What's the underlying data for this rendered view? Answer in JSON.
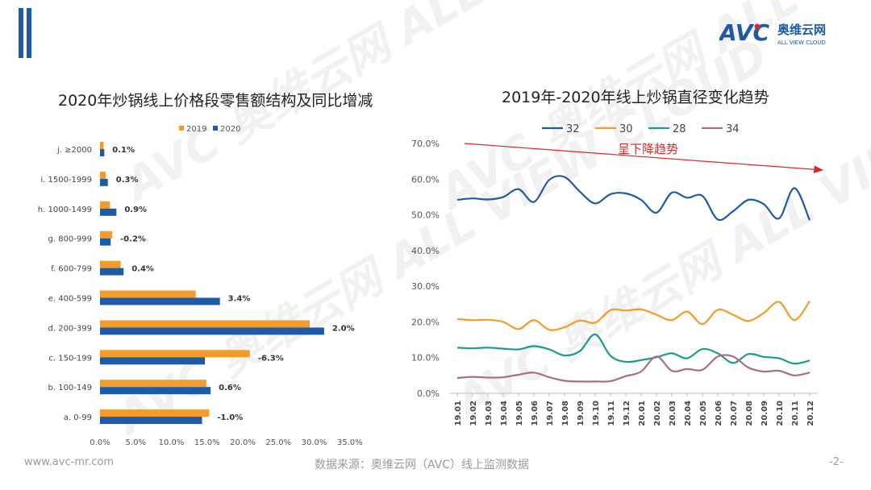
{
  "header": {
    "logo_text": "AVC",
    "logo_cn": "奥维云网",
    "logo_en": "ALL VIEW CLOUD",
    "colors": {
      "accent": "#1f5aa6",
      "logo_red": "#e02a2a"
    }
  },
  "watermark": "AVC 奥维云网 ALL VIEW CLOUD",
  "left_chart": {
    "title": "2020年炒锅线上价格段零售额结构及同比增减"
  },
  "right_chart": {
    "title": "2019年-2020年线上炒锅直径变化趋势",
    "annotation": "呈下降趋势"
  },
  "footer": {
    "website": "www.avc-mr.com",
    "source": "数据来源：奥维云网（AVC）线上监测数据",
    "page": "-2-"
  },
  "chart_data": [
    {
      "type": "bar",
      "orientation": "horizontal",
      "title": "2020年炒锅线上价格段零售额结构及同比增减",
      "categories": [
        "j. ≥2000",
        "i. 1500-1999",
        "h. 1000-1499",
        "g. 800-999",
        "f. 600-799",
        "e. 400-599",
        "d. 200-399",
        "c. 150-199",
        "b. 100-149",
        "a. 0-99"
      ],
      "series": [
        {
          "name": "2019",
          "color": "#f39c2b",
          "values": [
            0.5,
            0.8,
            1.4,
            1.7,
            2.9,
            13.4,
            29.4,
            21.0,
            14.9,
            15.3
          ]
        },
        {
          "name": "2020",
          "color": "#1f5aa6",
          "values": [
            0.6,
            1.1,
            2.3,
            1.5,
            3.3,
            16.8,
            31.4,
            14.7,
            15.5,
            14.3
          ]
        }
      ],
      "data_labels": [
        "0.1%",
        "0.3%",
        "0.9%",
        "-0.2%",
        "0.4%",
        "3.4%",
        "2.0%",
        "-6.3%",
        "0.6%",
        "-1.0%"
      ],
      "xlim": [
        0,
        35
      ],
      "xticks": [
        "0.0%",
        "5.0%",
        "10.0%",
        "15.0%",
        "20.0%",
        "25.0%",
        "30.0%",
        "35.0%"
      ],
      "legend": "top-right"
    },
    {
      "type": "line",
      "title": "2019年-2020年线上炒锅直径变化趋势",
      "x": [
        "19.01",
        "19.02",
        "19.03",
        "19.04",
        "19.05",
        "19.06",
        "19.07",
        "19.08",
        "19.09",
        "19.10",
        "19.11",
        "19.12",
        "20.01",
        "20.02",
        "20.03",
        "20.04",
        "20.05",
        "20.06",
        "20.07",
        "20.08",
        "20.09",
        "20.10",
        "20.11",
        "20.12"
      ],
      "series": [
        {
          "name": "32",
          "color": "#1f5aa6",
          "values": [
            54.2,
            54.6,
            54.3,
            55.0,
            57.2,
            53.6,
            59.8,
            60.6,
            56.5,
            53.2,
            55.8,
            56.0,
            54.2,
            50.6,
            56.2,
            54.8,
            55.3,
            48.7,
            51.0,
            54.2,
            53.0,
            49.0,
            57.5,
            48.5
          ]
        },
        {
          "name": "30",
          "color": "#f39c2b",
          "values": [
            20.8,
            20.5,
            20.6,
            20.0,
            18.0,
            20.5,
            17.8,
            18.5,
            20.4,
            19.8,
            23.3,
            23.2,
            23.5,
            22.0,
            20.5,
            22.9,
            19.4,
            23.4,
            22.0,
            20.3,
            22.5,
            25.6,
            20.5,
            25.8
          ]
        },
        {
          "name": "28",
          "color": "#1a9c8c",
          "values": [
            12.8,
            12.6,
            12.8,
            12.5,
            12.3,
            13.2,
            12.3,
            10.6,
            11.8,
            16.5,
            10.5,
            8.8,
            9.3,
            10.1,
            11.2,
            9.8,
            12.4,
            11.2,
            8.5,
            11.0,
            10.2,
            9.8,
            8.3,
            9.2
          ]
        },
        {
          "name": "34",
          "color": "#a8707a",
          "values": [
            4.3,
            4.6,
            4.4,
            4.5,
            5.2,
            5.8,
            4.5,
            3.5,
            3.3,
            3.3,
            3.4,
            4.8,
            6.1,
            10.3,
            6.3,
            6.8,
            6.6,
            10.3,
            10.3,
            7.2,
            6.1,
            6.3,
            5.0,
            5.8
          ]
        }
      ],
      "ylim": [
        0,
        70
      ],
      "yticks": [
        "0.0%",
        "10.0%",
        "20.0%",
        "30.0%",
        "40.0%",
        "50.0%",
        "60.0%",
        "70.0%"
      ],
      "annotation": "呈下降趋势",
      "legend": "top"
    }
  ]
}
